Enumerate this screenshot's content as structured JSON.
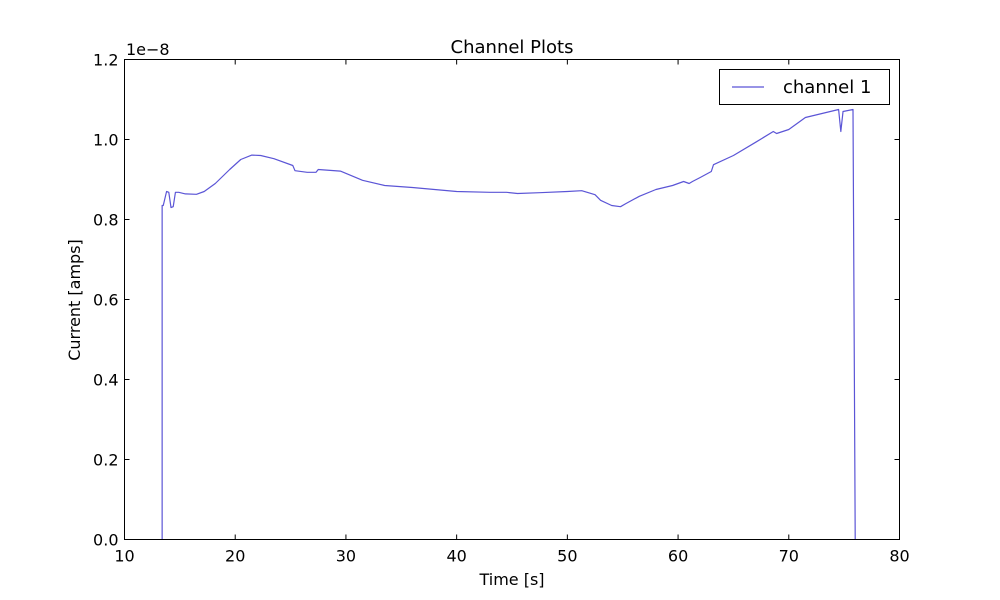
{
  "chart_data": {
    "type": "line",
    "title": "Channel Plots",
    "xlabel": "Time [s]",
    "ylabel": "Current [amps]",
    "offset_label": "1e−8",
    "xlim": [
      10,
      80
    ],
    "ylim": [
      0,
      1.2
    ],
    "x_ticks": [
      10,
      20,
      30,
      40,
      50,
      60,
      70,
      80
    ],
    "y_ticks": [
      0.0,
      0.2,
      0.4,
      0.6,
      0.8,
      1.0,
      1.2
    ],
    "x_tick_labels": [
      "10",
      "20",
      "30",
      "40",
      "50",
      "60",
      "70",
      "80"
    ],
    "y_tick_labels": [
      "0.0",
      "0.2",
      "0.4",
      "0.6",
      "0.8",
      "1.0",
      "1.2"
    ],
    "grid": false,
    "legend": "top-right",
    "line_color": "#5b55d6",
    "series": [
      {
        "name": "channel 1",
        "x": [
          13.4,
          13.5,
          13.8,
          14.0,
          14.2,
          14.4,
          14.6,
          14.9,
          15.5,
          16.5,
          17.2,
          18.2,
          19.5,
          20.5,
          21.5,
          22.3,
          23.5,
          25.2,
          25.4,
          26.5,
          27.3,
          27.5,
          29.5,
          31.5,
          33.5,
          36,
          40,
          43,
          44.5,
          45.5,
          47.5,
          50,
          51.3,
          52.5,
          53.0,
          54,
          54.8,
          55.3,
          56.5,
          58,
          59.5,
          60.5,
          61,
          61.3,
          62,
          63,
          63.2,
          65,
          67,
          68.6,
          68.9,
          70,
          70.5,
          71.5,
          73,
          74.5,
          74.7,
          74.9,
          75.8,
          76.0
        ],
        "y": [
          0.835,
          0.835,
          0.87,
          0.868,
          0.83,
          0.832,
          0.868,
          0.868,
          0.864,
          0.863,
          0.87,
          0.89,
          0.925,
          0.95,
          0.961,
          0.96,
          0.952,
          0.935,
          0.922,
          0.918,
          0.918,
          0.925,
          0.921,
          0.898,
          0.885,
          0.88,
          0.87,
          0.868,
          0.868,
          0.865,
          0.867,
          0.87,
          0.872,
          0.862,
          0.848,
          0.835,
          0.832,
          0.84,
          0.858,
          0.875,
          0.885,
          0.895,
          0.89,
          0.895,
          0.905,
          0.92,
          0.937,
          0.96,
          0.993,
          1.02,
          1.015,
          1.025,
          1.035,
          1.055,
          1.065,
          1.075,
          1.02,
          1.07,
          1.075,
          0.0
        ]
      }
    ]
  }
}
